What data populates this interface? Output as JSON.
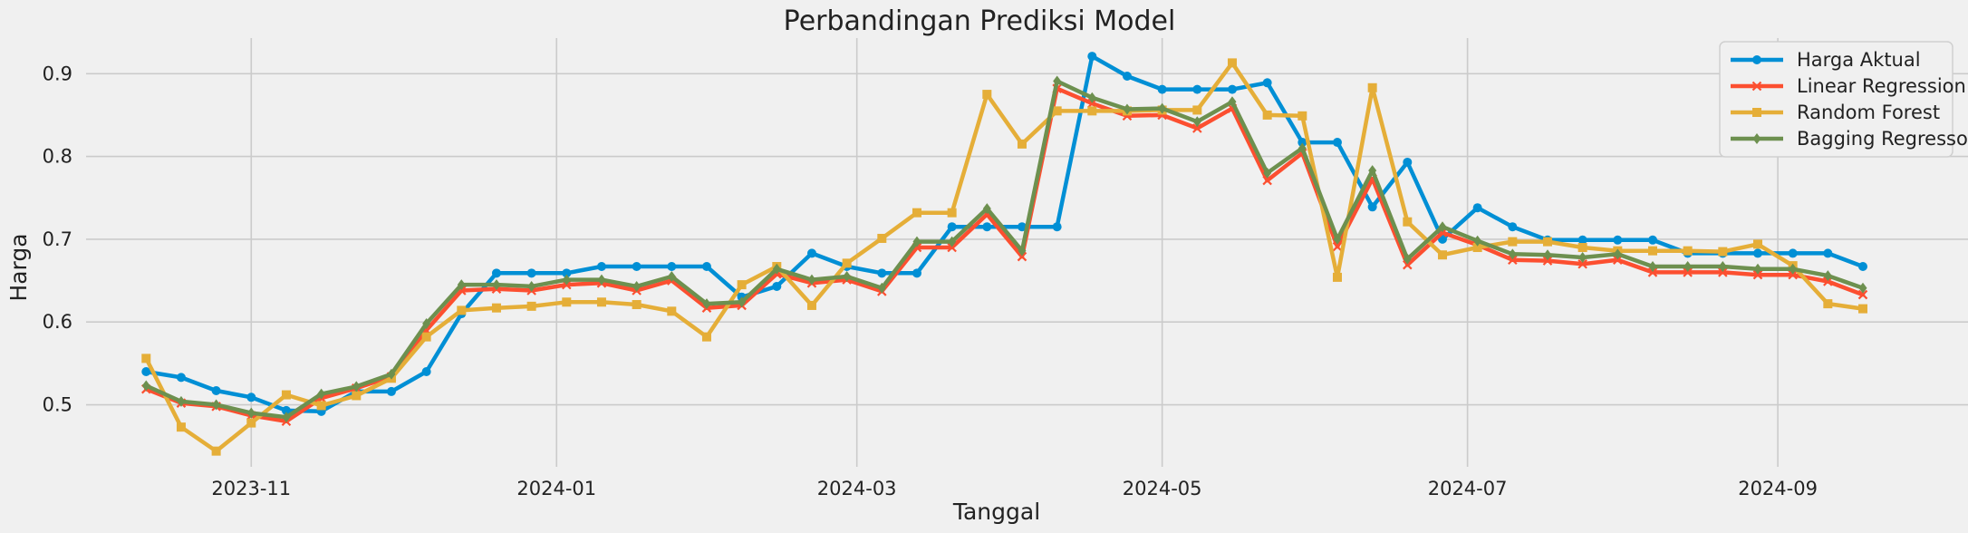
{
  "chart_data": {
    "type": "line",
    "title": "Perbandingan Prediksi Model",
    "xlabel": "Tanggal",
    "ylabel": "Harga",
    "x_ticks": [
      "2023-11",
      "2024-01",
      "2024-03",
      "2024-05",
      "2024-07",
      "2024-09"
    ],
    "y_ticks": [
      "0.5",
      "0.6",
      "0.7",
      "0.8",
      "0.9"
    ],
    "xlim": [
      "2023-09-29",
      "2024-10-09"
    ],
    "ylim": [
      0.425,
      0.943
    ],
    "grid": true,
    "legend_position": "top-right",
    "x": [
      "2023-10-11",
      "2023-10-18",
      "2023-10-25",
      "2023-11-01",
      "2023-11-08",
      "2023-11-15",
      "2023-11-22",
      "2023-11-29",
      "2023-12-06",
      "2023-12-13",
      "2023-12-20",
      "2023-12-27",
      "2024-01-03",
      "2024-01-10",
      "2024-01-17",
      "2024-01-24",
      "2024-01-31",
      "2024-02-07",
      "2024-02-14",
      "2024-02-21",
      "2024-02-28",
      "2024-03-06",
      "2024-03-13",
      "2024-03-20",
      "2024-03-27",
      "2024-04-03",
      "2024-04-10",
      "2024-04-17",
      "2024-04-24",
      "2024-05-01",
      "2024-05-08",
      "2024-05-15",
      "2024-05-22",
      "2024-05-29",
      "2024-06-05",
      "2024-06-12",
      "2024-06-19",
      "2024-06-26",
      "2024-07-03",
      "2024-07-10",
      "2024-07-17",
      "2024-07-24",
      "2024-07-31",
      "2024-08-07",
      "2024-08-14",
      "2024-08-21",
      "2024-08-28",
      "2024-09-04",
      "2024-09-11",
      "2024-09-18"
    ],
    "series": [
      {
        "name": "Harga Aktual",
        "color": "#008fd5",
        "marker": "circle",
        "values": [
          0.54,
          0.533,
          0.517,
          0.509,
          0.493,
          0.492,
          0.516,
          0.516,
          0.54,
          0.61,
          0.659,
          0.659,
          0.659,
          0.667,
          0.667,
          0.667,
          0.667,
          0.63,
          0.643,
          0.683,
          0.667,
          0.659,
          0.659,
          0.715,
          0.715,
          0.715,
          0.715,
          0.921,
          0.897,
          0.881,
          0.881,
          0.881,
          0.889,
          0.817,
          0.817,
          0.739,
          0.793,
          0.7,
          0.738,
          0.715,
          0.699,
          0.699,
          0.699,
          0.699,
          0.683,
          0.683,
          0.683,
          0.683,
          0.683,
          0.667
        ]
      },
      {
        "name": "Linear Regression",
        "color": "#fc4f30",
        "marker": "x",
        "values": [
          0.519,
          0.502,
          0.498,
          0.487,
          0.48,
          0.508,
          0.52,
          0.534,
          0.59,
          0.638,
          0.64,
          0.638,
          0.645,
          0.647,
          0.638,
          0.65,
          0.617,
          0.62,
          0.658,
          0.647,
          0.651,
          0.637,
          0.69,
          0.69,
          0.73,
          0.679,
          0.882,
          0.864,
          0.849,
          0.85,
          0.834,
          0.858,
          0.771,
          0.804,
          0.691,
          0.773,
          0.669,
          0.708,
          0.693,
          0.675,
          0.674,
          0.67,
          0.675,
          0.66,
          0.66,
          0.66,
          0.657,
          0.657,
          0.649,
          0.633
        ]
      },
      {
        "name": "Random Forest",
        "color": "#e5ae38",
        "marker": "square",
        "values": [
          0.556,
          0.473,
          0.444,
          0.478,
          0.512,
          0.499,
          0.511,
          0.532,
          0.582,
          0.614,
          0.617,
          0.619,
          0.624,
          0.624,
          0.621,
          0.613,
          0.582,
          0.645,
          0.667,
          0.62,
          0.671,
          0.701,
          0.732,
          0.732,
          0.875,
          0.815,
          0.855,
          0.855,
          0.855,
          0.856,
          0.856,
          0.913,
          0.85,
          0.849,
          0.654,
          0.883,
          0.721,
          0.681,
          0.69,
          0.697,
          0.697,
          0.69,
          0.686,
          0.686,
          0.686,
          0.685,
          0.694,
          0.668,
          0.622,
          0.616
        ]
      },
      {
        "name": "Bagging Regressor",
        "color": "#6d904f",
        "marker": "diamond",
        "values": [
          0.523,
          0.504,
          0.5,
          0.49,
          0.485,
          0.513,
          0.522,
          0.537,
          0.598,
          0.645,
          0.645,
          0.643,
          0.651,
          0.651,
          0.643,
          0.655,
          0.622,
          0.624,
          0.664,
          0.651,
          0.655,
          0.641,
          0.697,
          0.697,
          0.737,
          0.686,
          0.891,
          0.871,
          0.857,
          0.858,
          0.842,
          0.866,
          0.78,
          0.81,
          0.7,
          0.783,
          0.676,
          0.715,
          0.698,
          0.682,
          0.681,
          0.678,
          0.682,
          0.667,
          0.667,
          0.667,
          0.664,
          0.664,
          0.656,
          0.641
        ]
      }
    ]
  }
}
